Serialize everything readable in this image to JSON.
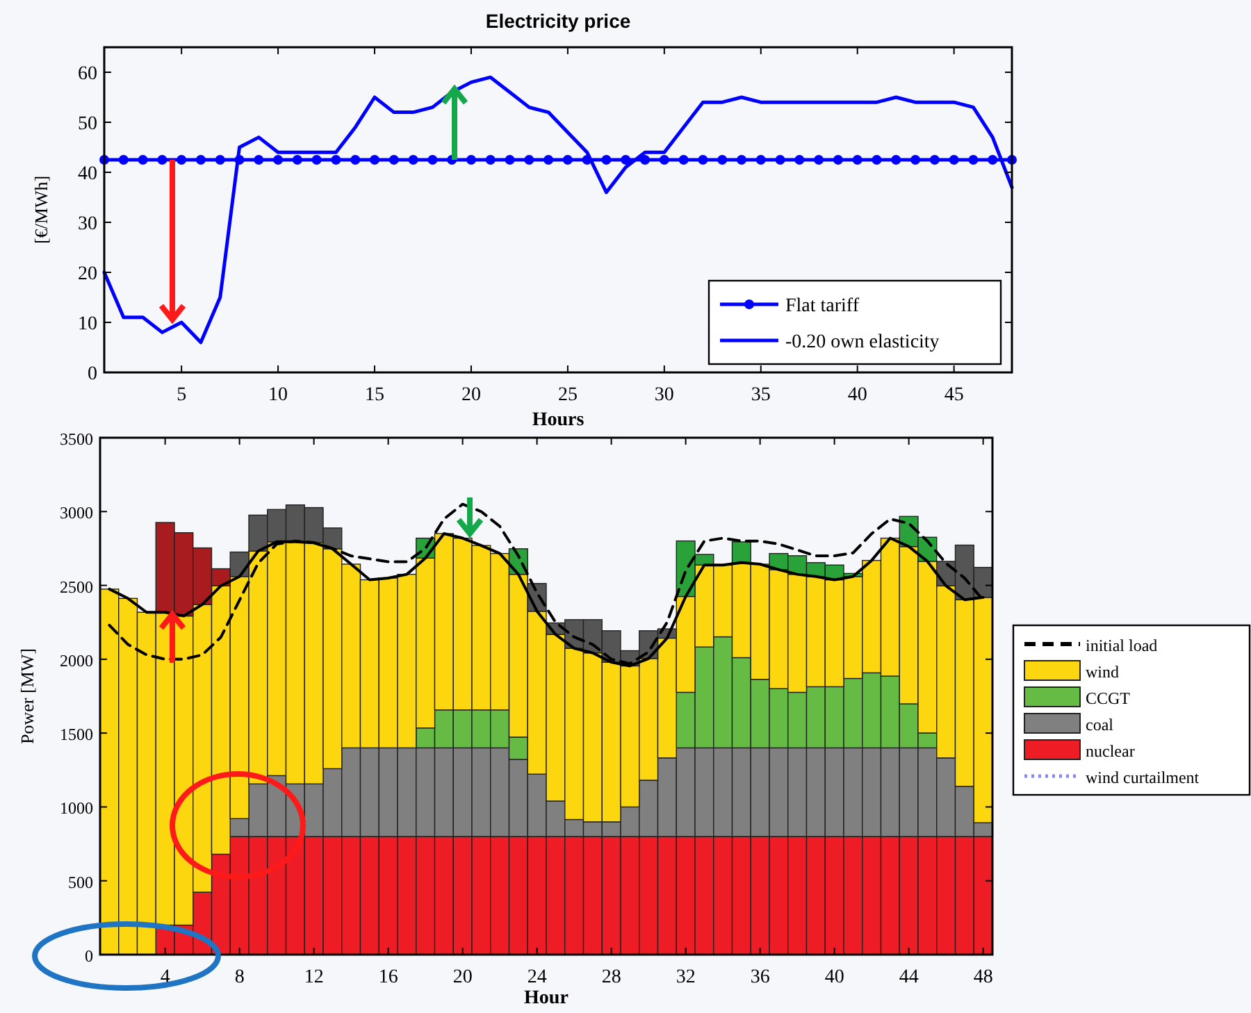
{
  "chart_data": [
    {
      "type": "line",
      "title": "Electricity price",
      "xlabel": "Hours",
      "ylabel": "[€/MWh]",
      "x": [
        1,
        2,
        3,
        4,
        5,
        6,
        7,
        8,
        9,
        10,
        11,
        12,
        13,
        14,
        15,
        16,
        17,
        18,
        19,
        20,
        21,
        22,
        23,
        24,
        25,
        26,
        27,
        28,
        29,
        30,
        31,
        32,
        33,
        34,
        35,
        36,
        37,
        38,
        39,
        40,
        41,
        42,
        43,
        44,
        45,
        46,
        47,
        48
      ],
      "xlim": [
        1,
        48
      ],
      "xticks": [
        5,
        10,
        15,
        20,
        25,
        30,
        35,
        40,
        45
      ],
      "ylim": [
        0,
        65
      ],
      "yticks": [
        0,
        10,
        20,
        30,
        40,
        50,
        60
      ],
      "legend": "bottom right",
      "series": [
        {
          "name": "Flat tariff",
          "color": "#0000ff",
          "marker": "circle",
          "values": [
            42.5,
            42.5,
            42.5,
            42.5,
            42.5,
            42.5,
            42.5,
            42.5,
            42.5,
            42.5,
            42.5,
            42.5,
            42.5,
            42.5,
            42.5,
            42.5,
            42.5,
            42.5,
            42.5,
            42.5,
            42.5,
            42.5,
            42.5,
            42.5,
            42.5,
            42.5,
            42.5,
            42.5,
            42.5,
            42.5,
            42.5,
            42.5,
            42.5,
            42.5,
            42.5,
            42.5,
            42.5,
            42.5,
            42.5,
            42.5,
            42.5,
            42.5,
            42.5,
            42.5,
            42.5,
            42.5,
            42.5,
            42.5
          ]
        },
        {
          "name": "-0.20 own elasticity",
          "color": "#0000ff",
          "marker": "none",
          "values": [
            20,
            11,
            11,
            8,
            10,
            6,
            15,
            45,
            47,
            44,
            44,
            44,
            44,
            49,
            55,
            52,
            52,
            53,
            56,
            58,
            59,
            56,
            53,
            52,
            48,
            44,
            36,
            41,
            44,
            44,
            49,
            54,
            54,
            55,
            54,
            54,
            54,
            54,
            54,
            54,
            54,
            55,
            54,
            54,
            54,
            53,
            47,
            37
          ]
        }
      ]
    },
    {
      "type": "bar",
      "stacked": true,
      "xlabel": "Hour",
      "ylabel": "Power [MW]",
      "x": [
        1,
        2,
        3,
        4,
        5,
        6,
        7,
        8,
        9,
        10,
        11,
        12,
        13,
        14,
        15,
        16,
        17,
        18,
        19,
        20,
        21,
        22,
        23,
        24,
        25,
        26,
        27,
        28,
        29,
        30,
        31,
        32,
        33,
        34,
        35,
        36,
        37,
        38,
        39,
        40,
        41,
        42,
        43,
        44,
        45,
        46,
        47,
        48
      ],
      "xlim": [
        0.5,
        48.5
      ],
      "xticks": [
        4,
        8,
        12,
        16,
        20,
        24,
        28,
        32,
        36,
        40,
        44,
        48
      ],
      "ylim": [
        0,
        3500
      ],
      "yticks": [
        0,
        500,
        1000,
        1500,
        2000,
        2500,
        3000,
        3500
      ],
      "legend": "right",
      "series": [
        {
          "name": "nuclear",
          "color": "#ee1c25",
          "values": [
            0,
            0,
            0,
            200,
            200,
            423,
            680,
            800,
            800,
            800,
            800,
            800,
            800,
            800,
            800,
            800,
            800,
            800,
            800,
            800,
            800,
            800,
            800,
            800,
            800,
            800,
            800,
            800,
            800,
            800,
            800,
            800,
            800,
            800,
            800,
            800,
            800,
            800,
            800,
            800,
            800,
            800,
            800,
            800,
            800,
            800,
            800,
            800
          ]
        },
        {
          "name": "coal",
          "color": "#808080",
          "values": [
            0,
            0,
            0,
            0,
            0,
            0,
            0,
            121,
            356,
            412,
            356,
            356,
            459,
            600,
            600,
            600,
            600,
            600,
            600,
            600,
            600,
            600,
            522,
            422,
            240,
            115,
            99,
            99,
            200,
            381,
            532,
            600,
            600,
            600,
            600,
            600,
            600,
            600,
            600,
            600,
            600,
            600,
            600,
            600,
            600,
            532,
            340,
            93
          ]
        },
        {
          "name": "CCGT",
          "color": "#66bb44",
          "values": [
            0,
            0,
            0,
            0,
            0,
            0,
            0,
            0,
            0,
            0,
            0,
            0,
            0,
            0,
            0,
            0,
            0,
            135,
            257,
            257,
            257,
            257,
            151,
            0,
            0,
            0,
            0,
            0,
            0,
            0,
            0,
            376,
            683,
            752,
            611,
            464,
            401,
            376,
            414,
            414,
            470,
            508,
            486,
            298,
            101,
            0,
            0,
            0
          ]
        },
        {
          "name": "wind",
          "color": "#fcd70f",
          "values": [
            2475,
            2412,
            2318,
            2118,
            2093,
            1948,
            1817,
            1639,
            1576,
            1583,
            1639,
            1632,
            1489,
            1244,
            1138,
            1150,
            1175,
            1150,
            1194,
            1163,
            1113,
            1059,
            1102,
            1103,
            1128,
            1159,
            1144,
            1081,
            955,
            824,
            811,
            649,
            555,
            486,
            643,
            780,
            806,
            799,
            746,
            724,
            690,
            761,
            934,
            1065,
            1162,
            1165,
            1263,
            1526
          ]
        },
        {
          "color": "#a81c20",
          "values": [
            null,
            null,
            null,
            608,
            564,
            383,
            116,
            null,
            null,
            null,
            null,
            null,
            null,
            null,
            null,
            null,
            null,
            null,
            null,
            null,
            null,
            null,
            null,
            null,
            null,
            null,
            null,
            null,
            null,
            null,
            null,
            null,
            null,
            null,
            null,
            null,
            null,
            null,
            null,
            null,
            null,
            null,
            null,
            null,
            null,
            null,
            null,
            null
          ]
        },
        {
          "color": "#555555",
          "values": [
            null,
            null,
            null,
            null,
            null,
            null,
            null,
            166,
            244,
            219,
            250,
            239,
            141,
            null,
            null,
            null,
            null,
            null,
            null,
            null,
            null,
            null,
            null,
            188,
            78,
            194,
            225,
            213,
            103,
            188,
            63,
            null,
            null,
            null,
            null,
            null,
            null,
            null,
            null,
            null,
            null,
            null,
            null,
            null,
            null,
            166,
            370,
            203
          ]
        },
        {
          "color": "#2aa23a",
          "values": [
            null,
            null,
            null,
            null,
            null,
            null,
            null,
            null,
            null,
            null,
            null,
            null,
            null,
            null,
            null,
            null,
            null,
            135,
            null,
            null,
            null,
            null,
            173,
            null,
            null,
            null,
            null,
            null,
            null,
            null,
            null,
            376,
            72,
            null,
            141,
            null,
            109,
            126,
            94,
            100,
            21,
            null,
            null,
            204,
            163,
            null,
            null,
            null
          ]
        },
        {
          "type": "line",
          "name": "initial load",
          "color": "#000000",
          "line_style": "dashed",
          "values": [
            2230,
            2100,
            2030,
            2000,
            2000,
            2030,
            2150,
            2400,
            2650,
            2780,
            2800,
            2790,
            2750,
            2700,
            2680,
            2660,
            2660,
            2750,
            2950,
            3050,
            3000,
            2900,
            2700,
            2450,
            2250,
            2150,
            2100,
            2000,
            1970,
            2050,
            2250,
            2600,
            2800,
            2820,
            2800,
            2800,
            2780,
            2740,
            2700,
            2700,
            2720,
            2850,
            2950,
            2920,
            2800,
            2650,
            2550,
            2400
          ]
        },
        {
          "type": "line",
          "color": "#000000",
          "line_style": "solid",
          "values": [
            2475,
            2412,
            2318,
            2318,
            2293,
            2371,
            2497,
            2560,
            2732,
            2795,
            2795,
            2788,
            2748,
            2644,
            2538,
            2550,
            2575,
            2685,
            2851,
            2820,
            2770,
            2716,
            2575,
            2325,
            2168,
            2074,
            2043,
            1980,
            1955,
            2005,
            2143,
            2425,
            2638,
            2638,
            2654,
            2644,
            2607,
            2575,
            2560,
            2538,
            2560,
            2669,
            2820,
            2763,
            2663,
            2497,
            2403,
            2419
          ]
        },
        {
          "type": "line",
          "name": "wind curtailment",
          "color": "#8888ee",
          "line_style": "dotted",
          "values": [
            null,
            null,
            null,
            null,
            null,
            null,
            null,
            null,
            null,
            null,
            null,
            null,
            null,
            null,
            null,
            null,
            null,
            null,
            null,
            null,
            null,
            null,
            null,
            null,
            null,
            null,
            null,
            null,
            null,
            null,
            null,
            null,
            null,
            null,
            null,
            null,
            null,
            null,
            null,
            null,
            null,
            null,
            null,
            null,
            null,
            null,
            null,
            null
          ]
        }
      ]
    }
  ]
}
